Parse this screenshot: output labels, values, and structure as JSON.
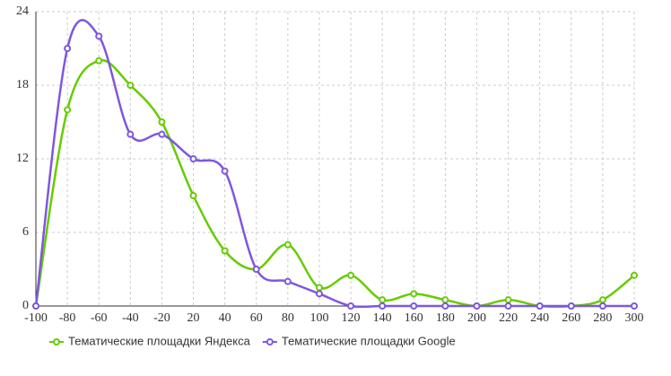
{
  "chart_data": {
    "type": "line",
    "smooth": true,
    "grid": true,
    "categories": [
      "-100",
      "-80",
      "-60",
      "-40",
      "-20",
      "20",
      "40",
      "60",
      "80",
      "100",
      "120",
      "140",
      "160",
      "180",
      "200",
      "220",
      "240",
      "260",
      "280",
      "300"
    ],
    "series": [
      {
        "name": "Тематические площадки Яндекса",
        "color": "#66cc00",
        "values": [
          0,
          16,
          20,
          18,
          15,
          9,
          4.5,
          3,
          5,
          1.5,
          2.5,
          0.5,
          1,
          0.5,
          0,
          0.5,
          0,
          0,
          0.5,
          2.5
        ]
      },
      {
        "name": "Тематические площадки Google",
        "color": "#7f57e0",
        "values": [
          0,
          21,
          22,
          14,
          14,
          12,
          11,
          3,
          2,
          1,
          0,
          0,
          0,
          0,
          0,
          0,
          0,
          0,
          0,
          0
        ]
      }
    ],
    "ylim": [
      0,
      24
    ],
    "yticks": [
      0,
      6,
      12,
      18,
      24
    ],
    "legend": "bottom"
  }
}
